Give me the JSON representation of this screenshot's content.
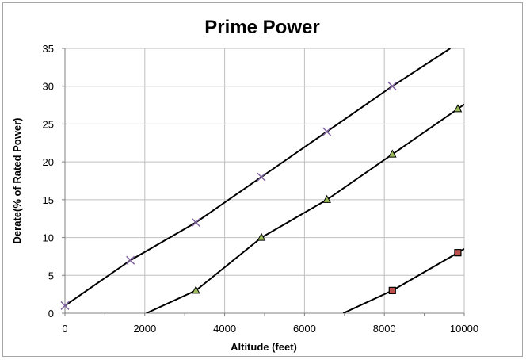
{
  "chart_data": {
    "type": "line",
    "title": "Prime Power",
    "xlabel": "Altitude (feet)",
    "ylabel": "Derate(% of Rated Power)",
    "xlim": [
      0,
      10000
    ],
    "ylim": [
      0,
      35
    ],
    "x_ticks": [
      0,
      2000,
      4000,
      6000,
      8000,
      10000
    ],
    "y_ticks": [
      0,
      5,
      10,
      15,
      20,
      25,
      30,
      35
    ],
    "grid": true,
    "legend": "none",
    "series": [
      {
        "marker": "x",
        "marker_color": "#8064a2",
        "line_color": "#000000",
        "points": [
          [
            0,
            1
          ],
          [
            1640,
            7
          ],
          [
            3280,
            12
          ],
          [
            4920,
            18
          ],
          [
            6560,
            24
          ],
          [
            8200,
            30
          ]
        ],
        "line": [
          [
            0,
            1
          ],
          [
            1640,
            7
          ],
          [
            3280,
            12
          ],
          [
            4920,
            18
          ],
          [
            6560,
            24
          ],
          [
            8200,
            30
          ],
          [
            9650,
            35
          ]
        ]
      },
      {
        "marker": "triangle",
        "marker_color": "#9bbb59",
        "line_color": "#000000",
        "points": [
          [
            3280,
            3
          ],
          [
            4920,
            10
          ],
          [
            6560,
            15
          ],
          [
            8200,
            21
          ],
          [
            9840,
            27
          ]
        ],
        "line": [
          [
            2040,
            0
          ],
          [
            3280,
            3
          ],
          [
            4920,
            10
          ],
          [
            6560,
            15
          ],
          [
            8200,
            21
          ],
          [
            9840,
            27
          ],
          [
            10000,
            27.6
          ]
        ]
      },
      {
        "marker": "square",
        "marker_color": "#c0504d",
        "line_color": "#000000",
        "points": [
          [
            8200,
            3
          ],
          [
            9840,
            8
          ]
        ],
        "line": [
          [
            6970,
            0
          ],
          [
            8200,
            3
          ],
          [
            9840,
            8
          ],
          [
            10000,
            8.5
          ]
        ]
      }
    ]
  }
}
